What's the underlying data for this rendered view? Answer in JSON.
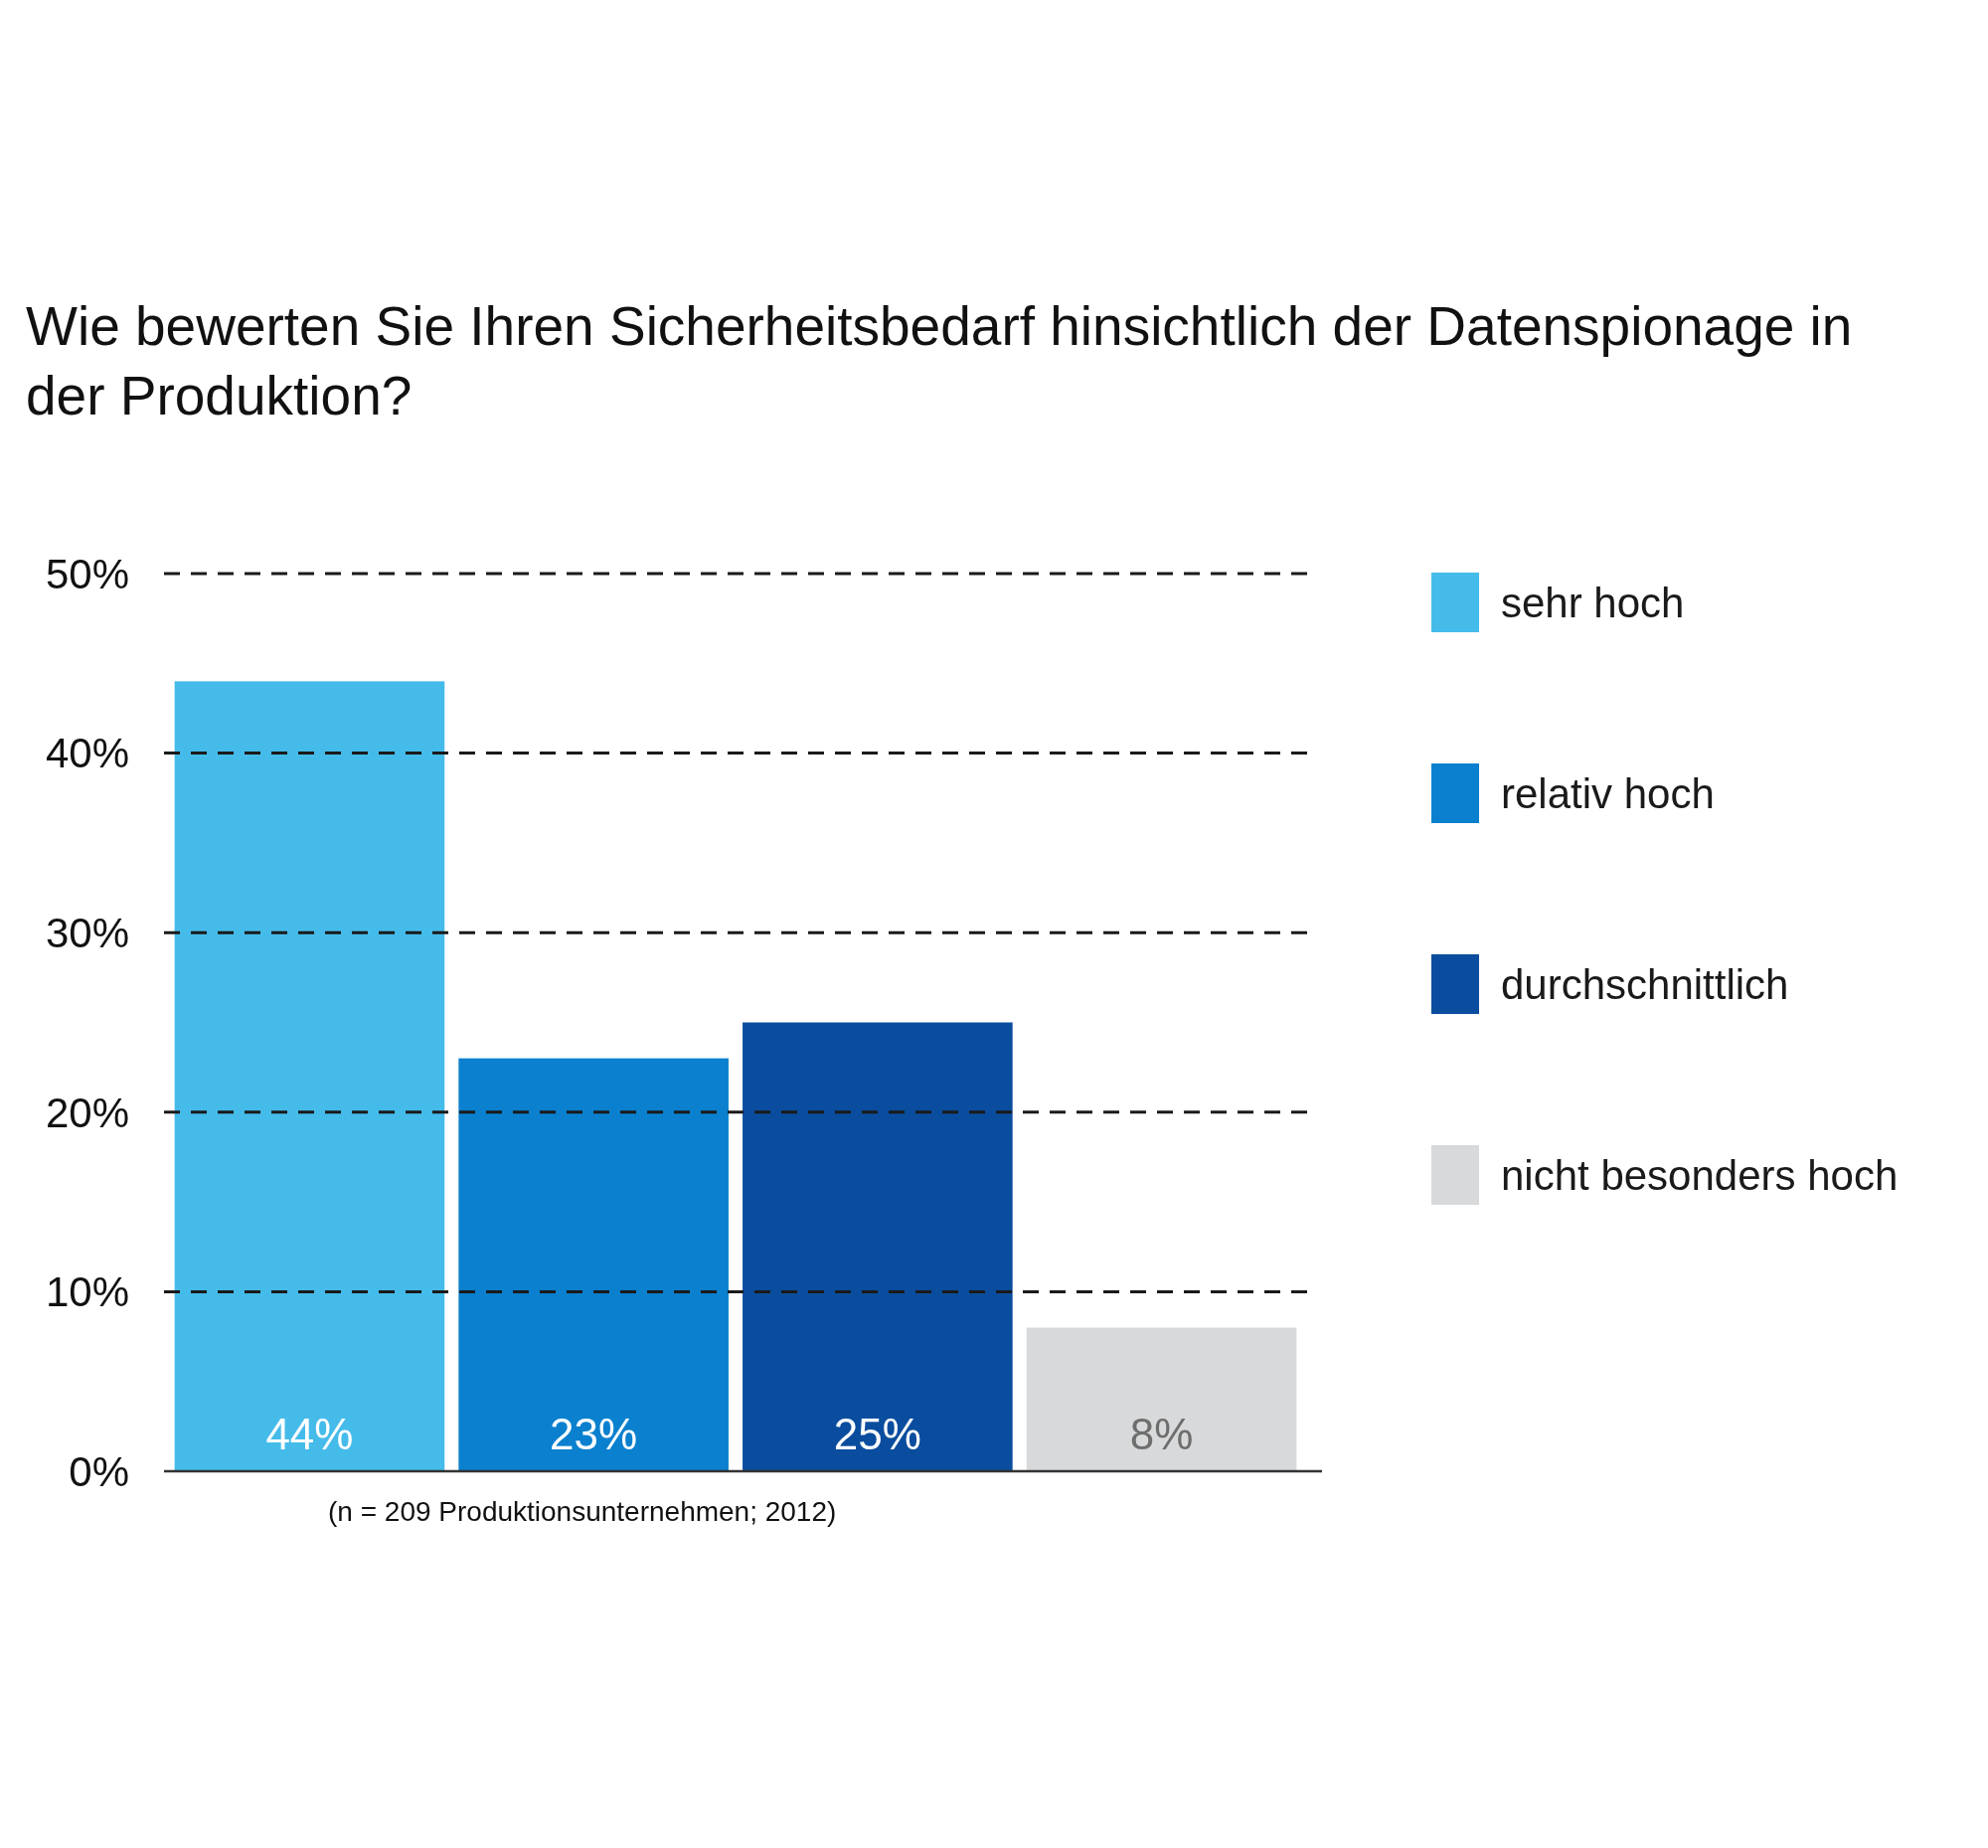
{
  "chart_data": {
    "type": "bar",
    "title": "Wie bewerten Sie Ihren Sicherheitsbedarf hinsichtlich der Datenspionage in der Produktion?",
    "categories": [
      null,
      null,
      null,
      null
    ],
    "series": [
      {
        "name": "sehr hoch",
        "color": "#45bbea",
        "values": [
          44,
          null,
          null,
          null
        ],
        "value_labels": [
          "44%",
          null,
          null,
          null
        ]
      },
      {
        "name": "relativ hoch",
        "color": "#0a80cf",
        "values": [
          null,
          23,
          null,
          null
        ],
        "value_labels": [
          null,
          "23%",
          null,
          null
        ]
      },
      {
        "name": "durchschnittlich",
        "color": "#0a4d9e",
        "values": [
          null,
          null,
          25,
          null
        ],
        "value_labels": [
          null,
          null,
          "25%",
          null
        ]
      },
      {
        "name": "nicht besonders hoch",
        "color": "#d8d9da",
        "values": [
          null,
          null,
          null,
          8
        ],
        "value_labels": [
          null,
          null,
          null,
          "8%"
        ]
      }
    ],
    "ylim": [
      0,
      50
    ],
    "yticks": [
      {
        "value": 0,
        "label": "0%"
      },
      {
        "value": 10,
        "label": "10%"
      },
      {
        "value": 20,
        "label": "20%"
      },
      {
        "value": 30,
        "label": "30%"
      },
      {
        "value": 40,
        "label": "40%"
      },
      {
        "value": 50,
        "label": "50%"
      }
    ],
    "grid": "y",
    "legend": "right",
    "annotations": [
      "(n = 209 Produktionsunternehmen; 2012)"
    ]
  }
}
